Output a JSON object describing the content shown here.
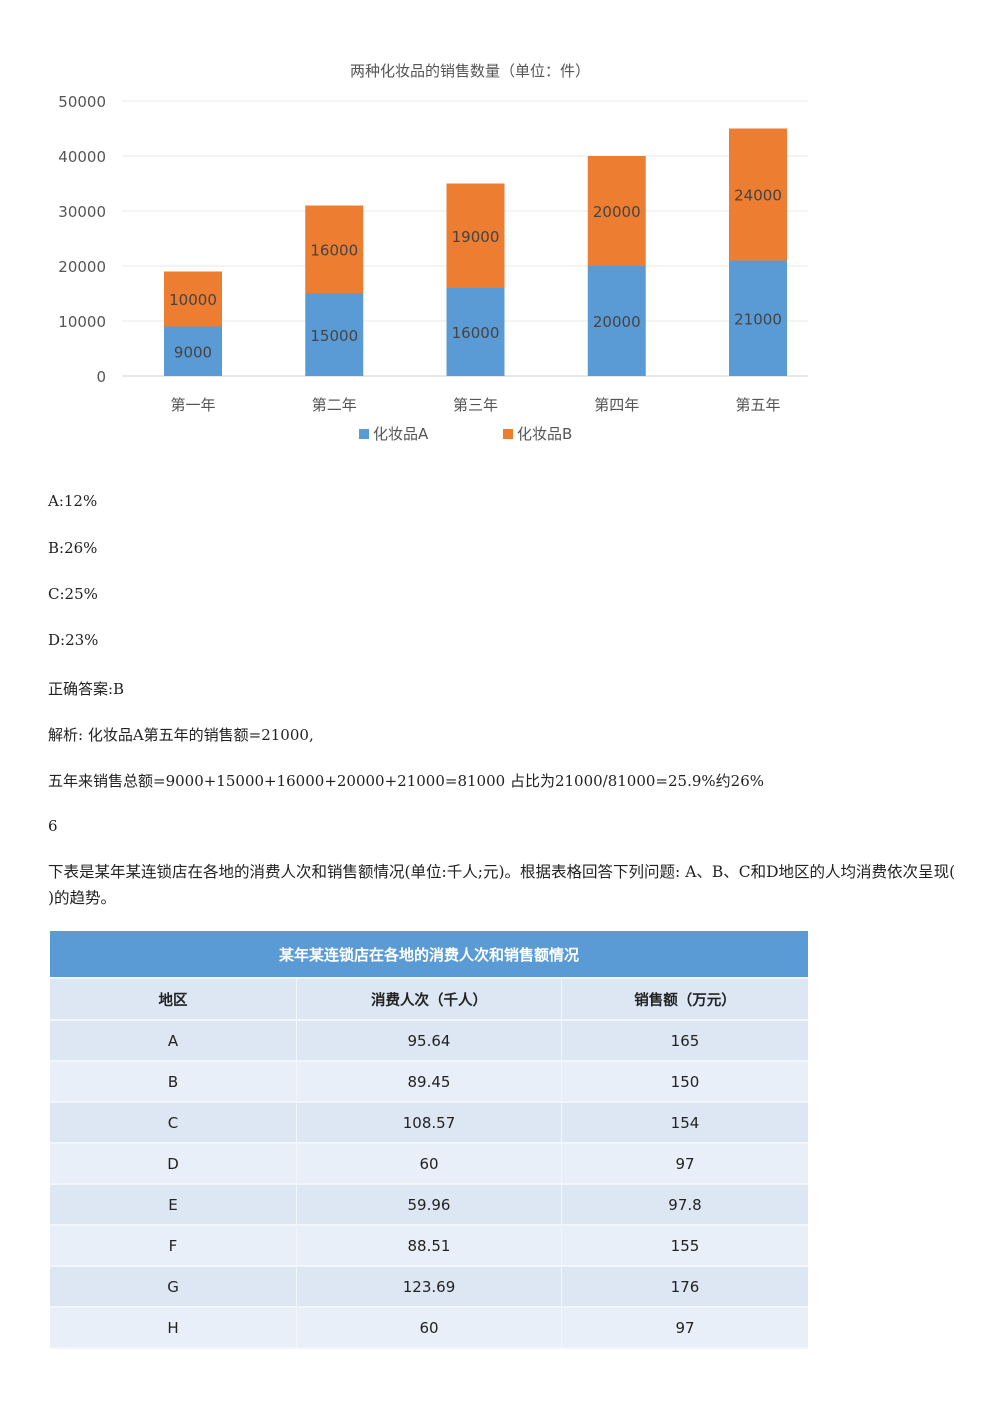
{
  "chart_data": {
    "type": "bar",
    "stacked": true,
    "title": "两种化妆品的销售数量（单位：件）",
    "categories": [
      "第一年",
      "第二年",
      "第三年",
      "第四年",
      "第五年"
    ],
    "series": [
      {
        "name": "化妆品A",
        "values": [
          9000,
          15000,
          16000,
          20000,
          21000
        ],
        "color": "#5b9bd5"
      },
      {
        "name": "化妆品B",
        "values": [
          10000,
          16000,
          19000,
          20000,
          24000
        ],
        "color": "#ed7d31"
      }
    ],
    "ylim": [
      0,
      50000
    ],
    "yticks": [
      0,
      10000,
      20000,
      30000,
      40000,
      50000
    ],
    "grid": true,
    "legend": "bottom"
  },
  "options": [
    {
      "text": "A:12%"
    },
    {
      "text": "B:26%"
    },
    {
      "text": "C:25%"
    },
    {
      "text": "D:23%"
    }
  ],
  "answer": "正确答案:B",
  "analysis_1": "解析: 化妆品A第五年的销售额=21000,",
  "analysis_2": "五年来销售总额=9000+15000+16000+20000+21000=81000 占比为21000/81000=25.9%约26%",
  "question_number": "6",
  "question_text": "下表是某年某连锁店在各地的消费人次和销售额情况(单位:千人;元)。根据表格回答下列问题: A、B、C和D地区的人均消费依次呈现( )的趋势。",
  "table": {
    "caption": "某年某连锁店在各地的消费人次和销售额情况",
    "headers": [
      "地区",
      "消费人次（千人）",
      "销售额（万元）"
    ],
    "rows": [
      [
        "A",
        "95.64",
        "165"
      ],
      [
        "B",
        "89.45",
        "150"
      ],
      [
        "C",
        "108.57",
        "154"
      ],
      [
        "D",
        "60",
        "97"
      ],
      [
        "E",
        "59.96",
        "97.8"
      ],
      [
        "F",
        "88.51",
        "155"
      ],
      [
        "G",
        "123.69",
        "176"
      ],
      [
        "H",
        "60",
        "97"
      ]
    ]
  }
}
